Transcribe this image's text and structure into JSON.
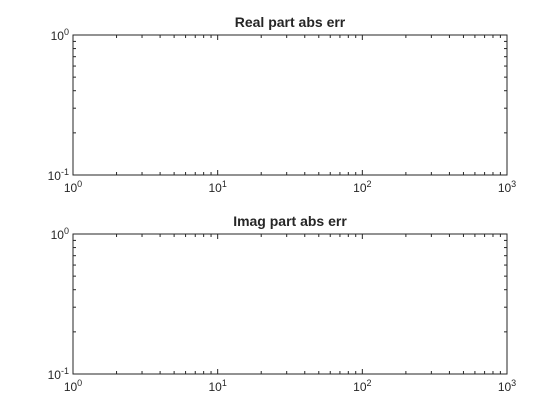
{
  "chart_data": [
    {
      "type": "line",
      "title": "Real part abs err",
      "xlabel": "",
      "ylabel": "",
      "xscale": "log",
      "yscale": "log",
      "xlim": [
        1,
        1000
      ],
      "ylim": [
        0.1,
        1
      ],
      "x_ticks": [
        {
          "base": "10",
          "exp": "0"
        },
        {
          "base": "10",
          "exp": "1"
        },
        {
          "base": "10",
          "exp": "2"
        },
        {
          "base": "10",
          "exp": "3"
        }
      ],
      "y_ticks": [
        {
          "base": "10",
          "exp": "-1"
        },
        {
          "base": "10",
          "exp": "0"
        }
      ],
      "grid": false,
      "series": []
    },
    {
      "type": "line",
      "title": "Imag part abs err",
      "xlabel": "",
      "ylabel": "",
      "xscale": "log",
      "yscale": "log",
      "xlim": [
        1,
        1000
      ],
      "ylim": [
        0.1,
        1
      ],
      "x_ticks": [
        {
          "base": "10",
          "exp": "0"
        },
        {
          "base": "10",
          "exp": "1"
        },
        {
          "base": "10",
          "exp": "2"
        },
        {
          "base": "10",
          "exp": "3"
        }
      ],
      "y_ticks": [
        {
          "base": "10",
          "exp": "-1"
        },
        {
          "base": "10",
          "exp": "0"
        }
      ],
      "grid": false,
      "series": []
    }
  ]
}
